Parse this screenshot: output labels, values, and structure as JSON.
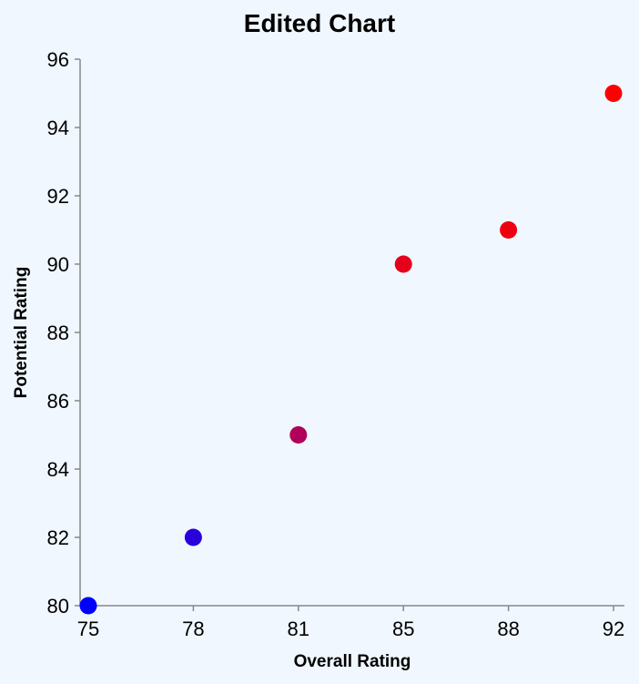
{
  "chart_data": {
    "type": "scatter",
    "title": "Edited Chart",
    "xlabel": "Overall Rating",
    "ylabel": "Potential Rating",
    "x_categories": [
      "75",
      "78",
      "81",
      "85",
      "88",
      "92"
    ],
    "y_ticks": [
      "80",
      "82",
      "84",
      "86",
      "88",
      "90",
      "92",
      "94",
      "96"
    ],
    "ylim": [
      80,
      96
    ],
    "grid": false,
    "points": [
      {
        "x": "75",
        "y": 80,
        "color": "#0000ff"
      },
      {
        "x": "78",
        "y": 82,
        "color": "#2a00dc"
      },
      {
        "x": "81",
        "y": 85,
        "color": "#b0005a"
      },
      {
        "x": "85",
        "y": 90,
        "color": "#e5001c"
      },
      {
        "x": "88",
        "y": 91,
        "color": "#ee0010"
      },
      {
        "x": "92",
        "y": 95,
        "color": "#ff0000"
      }
    ],
    "background": "#f0f7ff"
  }
}
